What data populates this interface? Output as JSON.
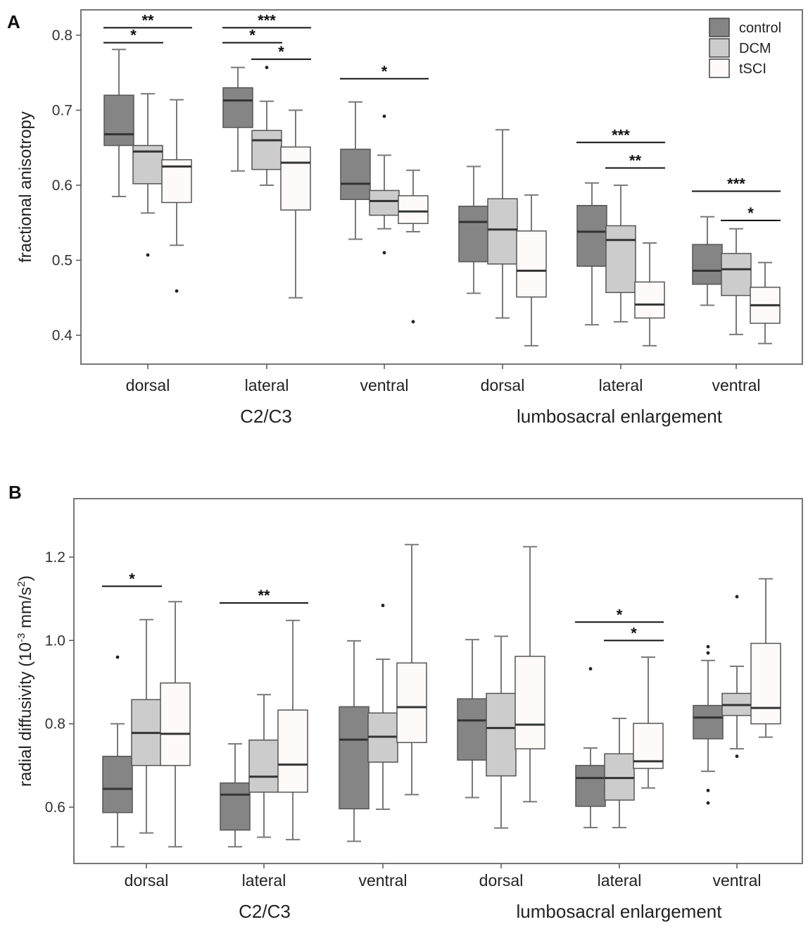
{
  "colors": {
    "control": "#858585",
    "DCM": "#cccccc",
    "tSCI": "#fffafa",
    "box_stroke": "#555555",
    "median": "#333333",
    "whisker": "#7a7a7a",
    "frame": "#777777"
  },
  "chart_data": [
    {
      "panel": "A",
      "type": "box",
      "ylabel": "fractional anisotropy",
      "ylim": [
        0.375,
        0.835
      ],
      "yticks": [
        0.4,
        0.5,
        0.6,
        0.7,
        0.8
      ],
      "ytick_labels": [
        "0.4",
        "0.5",
        "0.6",
        "0.7",
        "0.8"
      ],
      "categories": [
        "dorsal",
        "lateral",
        "ventral",
        "dorsal",
        "lateral",
        "ventral"
      ],
      "groups": [
        {
          "label": "C2/C3",
          "categories": [
            0,
            1,
            2
          ]
        },
        {
          "label": "lumbosacral enlargement",
          "categories": [
            3,
            4,
            5
          ]
        }
      ],
      "legend": {
        "position": "top-right",
        "entries": [
          "control",
          "DCM",
          "tSCI"
        ]
      },
      "series": [
        {
          "name": "control",
          "boxes": [
            {
              "whislo": 0.585,
              "q1": 0.653,
              "med": 0.668,
              "q3": 0.72,
              "whishi": 0.781,
              "fliers": []
            },
            {
              "whislo": 0.619,
              "q1": 0.677,
              "med": 0.713,
              "q3": 0.73,
              "whishi": 0.757,
              "fliers": []
            },
            {
              "whislo": 0.528,
              "q1": 0.581,
              "med": 0.602,
              "q3": 0.648,
              "whishi": 0.711,
              "fliers": []
            },
            {
              "whislo": 0.456,
              "q1": 0.498,
              "med": 0.551,
              "q3": 0.572,
              "whishi": 0.625,
              "fliers": []
            },
            {
              "whislo": 0.414,
              "q1": 0.492,
              "med": 0.538,
              "q3": 0.573,
              "whishi": 0.603,
              "fliers": []
            },
            {
              "whislo": 0.44,
              "q1": 0.468,
              "med": 0.486,
              "q3": 0.521,
              "whishi": 0.558,
              "fliers": []
            }
          ]
        },
        {
          "name": "DCM",
          "boxes": [
            {
              "whislo": 0.563,
              "q1": 0.602,
              "med": 0.645,
              "q3": 0.653,
              "whishi": 0.722,
              "fliers": [
                0.507
              ]
            },
            {
              "whislo": 0.6,
              "q1": 0.621,
              "med": 0.66,
              "q3": 0.673,
              "whishi": 0.712,
              "fliers": [
                0.757
              ]
            },
            {
              "whislo": 0.542,
              "q1": 0.56,
              "med": 0.579,
              "q3": 0.593,
              "whishi": 0.64,
              "fliers": [
                0.692,
                0.51
              ]
            },
            {
              "whislo": 0.423,
              "q1": 0.495,
              "med": 0.541,
              "q3": 0.582,
              "whishi": 0.674,
              "fliers": []
            },
            {
              "whislo": 0.418,
              "q1": 0.457,
              "med": 0.527,
              "q3": 0.546,
              "whishi": 0.6,
              "fliers": []
            },
            {
              "whislo": 0.401,
              "q1": 0.453,
              "med": 0.488,
              "q3": 0.509,
              "whishi": 0.542,
              "fliers": []
            }
          ]
        },
        {
          "name": "tSCI",
          "boxes": [
            {
              "whislo": 0.52,
              "q1": 0.577,
              "med": 0.625,
              "q3": 0.634,
              "whishi": 0.714,
              "fliers": [
                0.459
              ]
            },
            {
              "whislo": 0.45,
              "q1": 0.567,
              "med": 0.63,
              "q3": 0.651,
              "whishi": 0.7,
              "fliers": []
            },
            {
              "whislo": 0.538,
              "q1": 0.549,
              "med": 0.565,
              "q3": 0.586,
              "whishi": 0.62,
              "fliers": [
                0.418
              ]
            },
            {
              "whislo": 0.386,
              "q1": 0.451,
              "med": 0.486,
              "q3": 0.539,
              "whishi": 0.587,
              "fliers": []
            },
            {
              "whislo": 0.386,
              "q1": 0.423,
              "med": 0.441,
              "q3": 0.471,
              "whishi": 0.523,
              "fliers": []
            },
            {
              "whislo": 0.389,
              "q1": 0.416,
              "med": 0.44,
              "q3": 0.464,
              "whishi": 0.497,
              "fliers": []
            }
          ]
        }
      ],
      "significance": [
        {
          "category": 0,
          "from": "control",
          "to": "DCM",
          "y": 0.79,
          "stars": "*"
        },
        {
          "category": 0,
          "from": "control",
          "to": "tSCI",
          "y": 0.81,
          "stars": "**"
        },
        {
          "category": 1,
          "from": "control",
          "to": "DCM",
          "y": 0.79,
          "stars": "*"
        },
        {
          "category": 1,
          "from": "control",
          "to": "tSCI",
          "y": 0.81,
          "stars": "***"
        },
        {
          "category": 1,
          "from": "DCM",
          "to": "tSCI",
          "y": 0.768,
          "stars": "*"
        },
        {
          "category": 2,
          "from": "control",
          "to": "tSCI",
          "y": 0.742,
          "stars": "*"
        },
        {
          "category": 4,
          "from": "control",
          "to": "tSCI",
          "y": 0.657,
          "stars": "***"
        },
        {
          "category": 4,
          "from": "DCM",
          "to": "tSCI",
          "y": 0.623,
          "stars": "**"
        },
        {
          "category": 5,
          "from": "control",
          "to": "tSCI",
          "y": 0.592,
          "stars": "***"
        },
        {
          "category": 5,
          "from": "DCM",
          "to": "tSCI",
          "y": 0.553,
          "stars": "*"
        }
      ]
    },
    {
      "panel": "B",
      "type": "box",
      "ylabel": "radial diffusivity (10-3 mm/s2)",
      "ylabel_parts": {
        "prefix": "radial diffusivity (10",
        "exp1": "-3",
        "middle": " mm/s",
        "exp2": "2",
        "suffix": ")"
      },
      "ylim": [
        0.465,
        1.345
      ],
      "yticks": [
        0.6,
        0.8,
        1.0,
        1.2
      ],
      "ytick_labels": [
        "0.6",
        "0.8",
        "1.0",
        "1.2"
      ],
      "categories": [
        "dorsal",
        "lateral",
        "ventral",
        "dorsal",
        "lateral",
        "ventral"
      ],
      "groups": [
        {
          "label": "C2/C3",
          "categories": [
            0,
            1,
            2
          ]
        },
        {
          "label": "lumbosacral enlargement",
          "categories": [
            3,
            4,
            5
          ]
        }
      ],
      "series": [
        {
          "name": "control",
          "boxes": [
            {
              "whislo": 0.505,
              "q1": 0.587,
              "med": 0.644,
              "q3": 0.722,
              "whishi": 0.8,
              "fliers": [
                0.96
              ]
            },
            {
              "whislo": 0.505,
              "q1": 0.545,
              "med": 0.63,
              "q3": 0.658,
              "whishi": 0.752,
              "fliers": []
            },
            {
              "whislo": 0.518,
              "q1": 0.596,
              "med": 0.762,
              "q3": 0.841,
              "whishi": 0.999,
              "fliers": []
            },
            {
              "whislo": 0.623,
              "q1": 0.713,
              "med": 0.808,
              "q3": 0.86,
              "whishi": 1.002,
              "fliers": []
            },
            {
              "whislo": 0.551,
              "q1": 0.602,
              "med": 0.67,
              "q3": 0.7,
              "whishi": 0.742,
              "fliers": [
                0.932
              ]
            },
            {
              "whislo": 0.686,
              "q1": 0.764,
              "med": 0.815,
              "q3": 0.844,
              "whishi": 0.952,
              "fliers": [
                0.985,
                0.97,
                0.64,
                0.61
              ]
            }
          ]
        },
        {
          "name": "DCM",
          "boxes": [
            {
              "whislo": 0.538,
              "q1": 0.7,
              "med": 0.778,
              "q3": 0.858,
              "whishi": 1.05,
              "fliers": []
            },
            {
              "whislo": 0.528,
              "q1": 0.636,
              "med": 0.673,
              "q3": 0.761,
              "whishi": 0.87,
              "fliers": []
            },
            {
              "whislo": 0.595,
              "q1": 0.708,
              "med": 0.769,
              "q3": 0.826,
              "whishi": 0.955,
              "fliers": [
                1.084
              ]
            },
            {
              "whislo": 0.55,
              "q1": 0.675,
              "med": 0.79,
              "q3": 0.873,
              "whishi": 1.01,
              "fliers": []
            },
            {
              "whislo": 0.551,
              "q1": 0.617,
              "med": 0.67,
              "q3": 0.728,
              "whishi": 0.813,
              "fliers": []
            },
            {
              "whislo": 0.74,
              "q1": 0.82,
              "med": 0.845,
              "q3": 0.873,
              "whishi": 0.938,
              "fliers": [
                1.105,
                0.722
              ]
            }
          ]
        },
        {
          "name": "tSCI",
          "boxes": [
            {
              "whislo": 0.505,
              "q1": 0.7,
              "med": 0.776,
              "q3": 0.898,
              "whishi": 1.093,
              "fliers": []
            },
            {
              "whislo": 0.522,
              "q1": 0.636,
              "med": 0.702,
              "q3": 0.833,
              "whishi": 1.048,
              "fliers": []
            },
            {
              "whislo": 0.63,
              "q1": 0.755,
              "med": 0.84,
              "q3": 0.946,
              "whishi": 1.23,
              "fliers": []
            },
            {
              "whislo": 0.613,
              "q1": 0.74,
              "med": 0.798,
              "q3": 0.962,
              "whishi": 1.225,
              "fliers": []
            },
            {
              "whislo": 0.646,
              "q1": 0.693,
              "med": 0.71,
              "q3": 0.801,
              "whishi": 0.96,
              "fliers": []
            },
            {
              "whislo": 0.768,
              "q1": 0.8,
              "med": 0.838,
              "q3": 0.993,
              "whishi": 1.148,
              "fliers": []
            }
          ]
        }
      ],
      "significance": [
        {
          "category": 0,
          "from": "control",
          "to": "DCM",
          "y": 1.13,
          "stars": "*"
        },
        {
          "category": 1,
          "from": "control",
          "to": "tSCI",
          "y": 1.09,
          "stars": "**"
        },
        {
          "category": 4,
          "from": "control",
          "to": "tSCI",
          "y": 1.044,
          "stars": "*"
        },
        {
          "category": 4,
          "from": "DCM",
          "to": "tSCI",
          "y": 1.0,
          "stars": "*"
        }
      ]
    }
  ]
}
